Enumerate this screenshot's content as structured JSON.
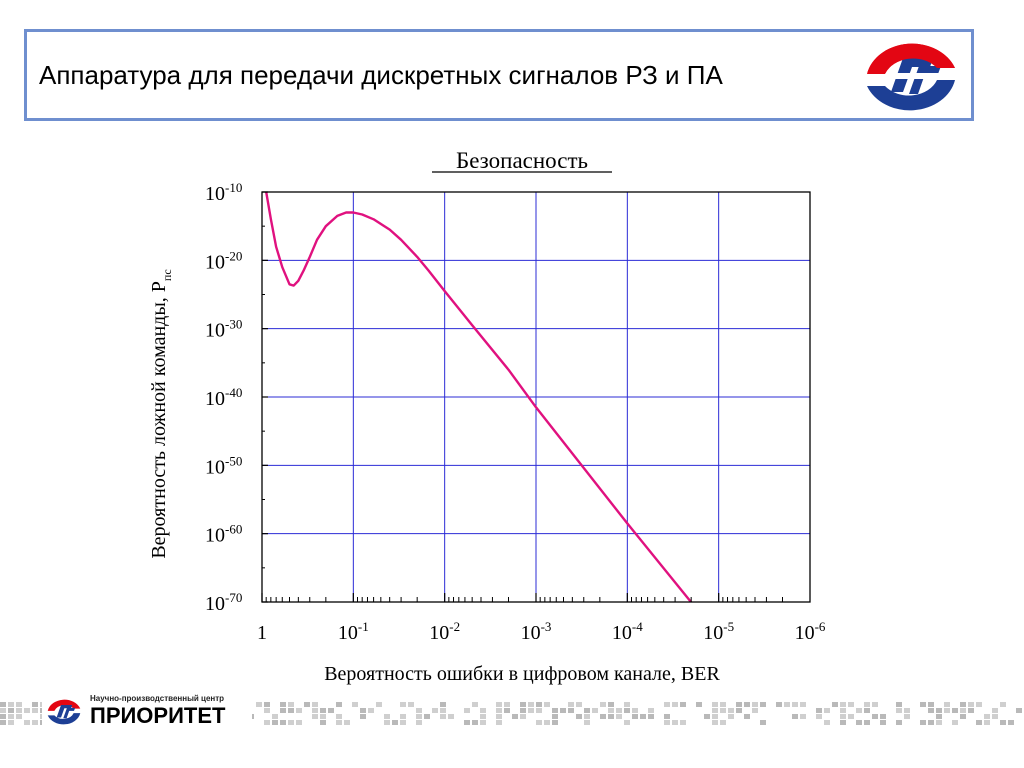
{
  "header": {
    "title": "Аппаратура для передачи дискретных сигналов РЗ и ПА"
  },
  "colors": {
    "frame": "#6f8fcf",
    "grid": "#2b2bd6",
    "curve": "#e0117f",
    "logo_red": "#e30613",
    "logo_blue": "#1d3f95",
    "pixel_band": "#cfcfcf"
  },
  "chart_data": {
    "type": "line",
    "title": "Безопасность",
    "xlabel": "Вероятность ошибки в цифровом канале, BER",
    "ylabel_main": "Вероятность ложной команды, P",
    "ylabel_sub": "пс",
    "x_scale": "log",
    "y_scale": "log",
    "x_direction": "decreasing",
    "xlim": [
      1,
      1e-06
    ],
    "ylim": [
      1e-70,
      1e-10
    ],
    "grid": true,
    "x_ticks": [
      {
        "base": "1",
        "exp": ""
      },
      {
        "base": "10",
        "exp": "-1"
      },
      {
        "base": "10",
        "exp": "-2"
      },
      {
        "base": "10",
        "exp": "-3"
      },
      {
        "base": "10",
        "exp": "-4"
      },
      {
        "base": "10",
        "exp": "-5"
      },
      {
        "base": "10",
        "exp": "-6"
      }
    ],
    "y_ticks": [
      {
        "base": "10",
        "exp": "-10"
      },
      {
        "base": "10",
        "exp": "-20"
      },
      {
        "base": "10",
        "exp": "-30"
      },
      {
        "base": "10",
        "exp": "-40"
      },
      {
        "base": "10",
        "exp": "-50"
      },
      {
        "base": "10",
        "exp": "-60"
      },
      {
        "base": "10",
        "exp": "-70"
      }
    ],
    "series": [
      {
        "points": [
          [
            0.9,
            -10
          ],
          [
            0.8,
            -14
          ],
          [
            0.7,
            -18
          ],
          [
            0.6,
            -21
          ],
          [
            0.5,
            -23.5
          ],
          [
            0.45,
            -23.7
          ],
          [
            0.4,
            -23
          ],
          [
            0.35,
            -21.5
          ],
          [
            0.3,
            -19.5
          ],
          [
            0.25,
            -17
          ],
          [
            0.2,
            -15
          ],
          [
            0.15,
            -13.5
          ],
          [
            0.12,
            -13
          ],
          [
            0.1,
            -13
          ],
          [
            0.08,
            -13.3
          ],
          [
            0.06,
            -14
          ],
          [
            0.04,
            -15.5
          ],
          [
            0.03,
            -17
          ],
          [
            0.02,
            -19.5
          ],
          [
            0.015,
            -21.5
          ],
          [
            0.01,
            -24.5
          ],
          [
            0.005,
            -29.5
          ],
          [
            0.002,
            -36
          ],
          [
            0.001,
            -41.5
          ],
          [
            0.0001,
            -58.5
          ],
          [
            1e-05,
            -75
          ]
        ]
      }
    ]
  },
  "footer": {
    "small_text": "Научно-производственный центр",
    "brand": "ПРИОРИТЕТ"
  }
}
